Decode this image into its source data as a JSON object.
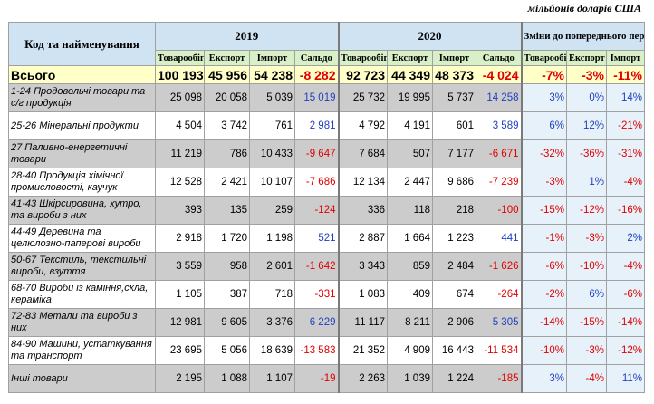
{
  "unit_label": "мільйонів доларів США",
  "header": {
    "code_name": "Код та найменування",
    "year_2019": "2019",
    "year_2020": "2020",
    "changes": "Зміни до попереднього періоду",
    "cols_year": [
      "Товарообіг",
      "Експорт",
      "Імпорт",
      "Сальдо"
    ],
    "cols_change": [
      "Товарообіг",
      "Експорт",
      "Імпорт"
    ]
  },
  "total": {
    "name": "Всього",
    "y2019": [
      "100 193",
      "45 956",
      "54 238",
      "-8 282"
    ],
    "y2020": [
      "92 723",
      "44 349",
      "48 373",
      "-4 024"
    ],
    "changes": [
      "-7%",
      "-3%",
      "-11%"
    ]
  },
  "rows": [
    {
      "name": "1-24 Продовольчі товари та с/г продукція",
      "y2019": [
        "25 098",
        "20 058",
        "5 039",
        "15 019"
      ],
      "y2020": [
        "25 732",
        "19 995",
        "5 737",
        "14 258"
      ],
      "changes": [
        "3%",
        "0%",
        "14%"
      ]
    },
    {
      "name": "25-26 Мінеральні продукти",
      "y2019": [
        "4 504",
        "3 742",
        "761",
        "2 981"
      ],
      "y2020": [
        "4 792",
        "4 191",
        "601",
        "3 589"
      ],
      "changes": [
        "6%",
        "12%",
        "-21%"
      ]
    },
    {
      "name": "27 Паливно-енергетичні товари",
      "y2019": [
        "11 219",
        "786",
        "10 433",
        "-9 647"
      ],
      "y2020": [
        "7 684",
        "507",
        "7 177",
        "-6 671"
      ],
      "changes": [
        "-32%",
        "-36%",
        "-31%"
      ]
    },
    {
      "name": "28-40 Продукція хімічної промисловості, каучук",
      "y2019": [
        "12 528",
        "2 421",
        "10 107",
        "-7 686"
      ],
      "y2020": [
        "12 134",
        "2 447",
        "9 686",
        "-7 239"
      ],
      "changes": [
        "-3%",
        "1%",
        "-4%"
      ]
    },
    {
      "name": "41-43 Шкірсировина, хутро, та вироби з них",
      "y2019": [
        "393",
        "135",
        "259",
        "-124"
      ],
      "y2020": [
        "336",
        "118",
        "218",
        "-100"
      ],
      "changes": [
        "-15%",
        "-12%",
        "-16%"
      ]
    },
    {
      "name": "44-49 Деревина та целюлозно-паперові вироби",
      "y2019": [
        "2 918",
        "1 720",
        "1 198",
        "521"
      ],
      "y2020": [
        "2 887",
        "1 664",
        "1 223",
        "441"
      ],
      "changes": [
        "-1%",
        "-3%",
        "2%"
      ]
    },
    {
      "name": "50-67 Текстиль, текстильні вироби, взуття",
      "y2019": [
        "3 559",
        "958",
        "2 601",
        "-1 642"
      ],
      "y2020": [
        "3 343",
        "859",
        "2 484",
        "-1 626"
      ],
      "changes": [
        "-6%",
        "-10%",
        "-4%"
      ]
    },
    {
      "name": "68-70 Вироби із каміння,скла, кераміка",
      "y2019": [
        "1 105",
        "387",
        "718",
        "-331"
      ],
      "y2020": [
        "1 083",
        "409",
        "674",
        "-264"
      ],
      "changes": [
        "-2%",
        "6%",
        "-6%"
      ]
    },
    {
      "name": "72-83 Метали та вироби з них",
      "y2019": [
        "12 981",
        "9 605",
        "3 376",
        "6 229"
      ],
      "y2020": [
        "11 117",
        "8 211",
        "2 906",
        "5 305"
      ],
      "changes": [
        "-14%",
        "-15%",
        "-14%"
      ]
    },
    {
      "name": "84-90 Машини, устаткування та транспорт",
      "y2019": [
        "23 695",
        "5 056",
        "18 639",
        "-13 583"
      ],
      "y2020": [
        "21 352",
        "4 909",
        "16 443",
        "-11 534"
      ],
      "changes": [
        "-10%",
        "-3%",
        "-12%"
      ]
    },
    {
      "name": "Інші товари",
      "y2019": [
        "2 195",
        "1 088",
        "1 107",
        "-19"
      ],
      "y2020": [
        "2 263",
        "1 039",
        "1 224",
        "-185"
      ],
      "changes": [
        "3%",
        "-4%",
        "11%"
      ]
    }
  ]
}
